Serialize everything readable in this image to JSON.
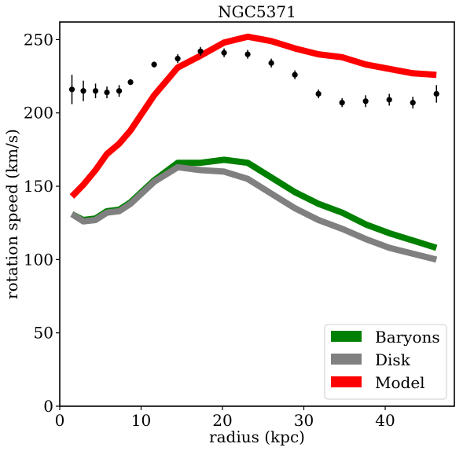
{
  "chart_data": {
    "type": "line",
    "title": "NGC5371",
    "xlabel": "radius (kpc)",
    "ylabel": "rotation speed (km/s)",
    "xlim": [
      0,
      48.5
    ],
    "ylim": [
      0,
      262
    ],
    "xticks": [
      "0",
      "10",
      "20",
      "30",
      "40"
    ],
    "yticks": [
      "0",
      "50",
      "100",
      "150",
      "200",
      "250"
    ],
    "grid": false,
    "legend_position": "bottom-right",
    "series": [
      {
        "name": "Baryons",
        "color": "#008000",
        "x": [
          1.5,
          2.9,
          4.4,
          5.8,
          7.3,
          8.7,
          11.6,
          14.5,
          17.3,
          20.2,
          23.1,
          26.0,
          28.9,
          31.8,
          34.7,
          37.6,
          40.5,
          43.4,
          46.3
        ],
        "y": [
          131,
          127,
          128,
          133,
          134,
          139,
          154,
          166,
          166,
          168,
          166,
          156,
          146,
          138,
          132,
          124,
          118,
          113,
          108
        ]
      },
      {
        "name": "Disk",
        "color": "#808080",
        "x": [
          1.5,
          2.9,
          4.4,
          5.8,
          7.3,
          8.7,
          11.6,
          14.5,
          17.3,
          20.2,
          23.1,
          26.0,
          28.9,
          31.8,
          34.7,
          37.6,
          40.5,
          43.4,
          46.3
        ],
        "y": [
          131,
          126,
          127,
          132,
          133,
          138,
          153,
          163,
          161,
          160,
          155,
          145,
          135,
          127,
          121,
          114,
          108,
          104,
          100
        ]
      },
      {
        "name": "Model",
        "color": "#ff0000",
        "x": [
          1.5,
          2.9,
          4.4,
          5.8,
          7.3,
          8.7,
          11.6,
          14.5,
          17.3,
          20.2,
          23.1,
          26.0,
          28.9,
          31.8,
          34.7,
          37.6,
          40.5,
          43.4,
          46.3
        ],
        "y": [
          143,
          151,
          161,
          172,
          179,
          188,
          212,
          231,
          239,
          248,
          252,
          249,
          244,
          240,
          238,
          233,
          230,
          227,
          226
        ]
      }
    ],
    "observed": {
      "color": "#000000",
      "x": [
        1.5,
        2.9,
        4.4,
        5.8,
        7.3,
        8.7,
        11.6,
        14.5,
        17.3,
        20.2,
        23.1,
        26.0,
        28.9,
        31.8,
        34.7,
        37.6,
        40.5,
        43.4,
        46.3
      ],
      "y": [
        216,
        215,
        215,
        214,
        215,
        221,
        233,
        237,
        242,
        241,
        240,
        234,
        226,
        213,
        207,
        208,
        209,
        207,
        213
      ],
      "err": [
        10,
        7,
        5,
        4,
        4,
        2,
        2,
        3,
        3,
        3,
        3,
        3,
        3,
        3,
        3,
        4,
        4,
        4,
        6
      ]
    }
  }
}
